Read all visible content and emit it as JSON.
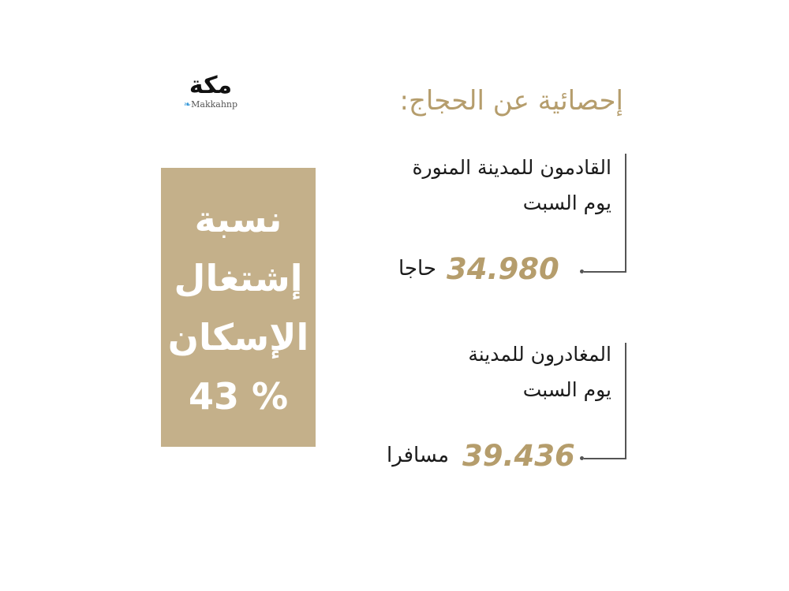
{
  "logo": {
    "mark": "مكة",
    "handle": "Makkahnp",
    "icon": "twitter-bird-icon"
  },
  "title": "إحصائية عن الحجاج:",
  "occupancy": {
    "lines": [
      "نسبة",
      "إشتغال",
      "الإسكان",
      "43 %"
    ],
    "value_percent": 43
  },
  "stats": [
    {
      "label_lines": [
        "القادمون للمدينة المنورة",
        "يوم السبت"
      ],
      "value": "34.980",
      "unit": "حاجا"
    },
    {
      "label_lines": [
        "المغادرون للمدينة",
        "يوم السبت"
      ],
      "value": "39.436",
      "unit": "مسافرا"
    }
  ],
  "colors": {
    "gold": "#b59d6c",
    "box": "#c4b08a",
    "text": "#1a1a1a"
  }
}
